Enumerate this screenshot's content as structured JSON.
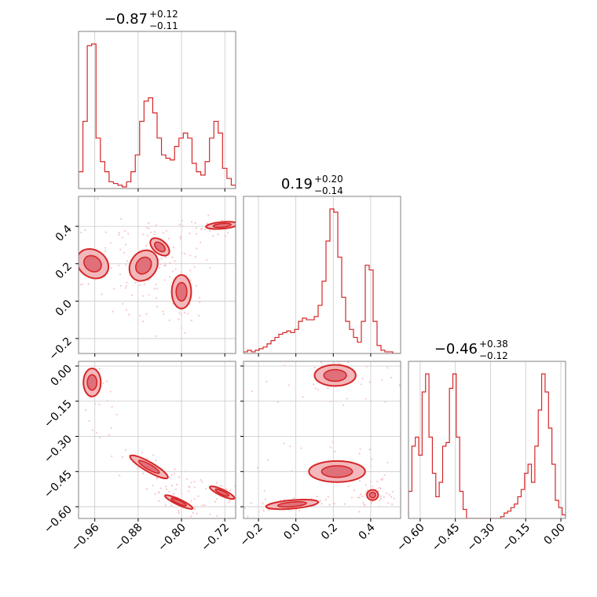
{
  "colors": {
    "accent": "#d62728",
    "fill_light": "#f2b8bb",
    "fill_dark": "#e0707a",
    "points": "#f6c8cb",
    "frame": "#808080",
    "grid": "#c8c8c8"
  },
  "chart_data": {
    "type": "corner",
    "parameters": [
      {
        "median": "−0.87",
        "plus": "+0.12",
        "minus": "−0.11",
        "range": [
          -0.99,
          -0.7
        ],
        "ticks": [
          -0.96,
          -0.88,
          -0.8,
          -0.72
        ],
        "tick_labels": [
          "−0.96",
          "−0.88",
          "−0.80",
          "−0.72"
        ]
      },
      {
        "median": "0.19",
        "plus": "+0.20",
        "minus": "−0.14",
        "range": [
          -0.28,
          0.56
        ],
        "ticks": [
          -0.2,
          0.0,
          0.2,
          0.4
        ],
        "tick_labels": [
          "−0.2",
          "0.0",
          "0.2",
          "0.4"
        ]
      },
      {
        "median": "−0.46",
        "plus": "+0.38",
        "minus": "−0.12",
        "range": [
          -0.65,
          0.02
        ],
        "ticks": [
          -0.6,
          -0.45,
          -0.3,
          -0.15,
          0.0
        ],
        "tick_labels": [
          "−0.60",
          "−0.45",
          "−0.30",
          "−0.15",
          "0.00"
        ]
      }
    ],
    "histograms": [
      {
        "values": [
          0.1,
          0.4,
          0.85,
          0.86,
          0.3,
          0.16,
          0.1,
          0.04,
          0.03,
          0.02,
          0.01,
          0.04,
          0.1,
          0.2,
          0.4,
          0.52,
          0.54,
          0.45,
          0.3,
          0.2,
          0.18,
          0.17,
          0.25,
          0.3,
          0.33,
          0.3,
          0.15,
          0.1,
          0.08,
          0.16,
          0.3,
          0.4,
          0.33,
          0.12,
          0.06,
          0.02
        ]
      },
      {
        "values": [
          0.01,
          0.02,
          0.01,
          0.02,
          0.03,
          0.04,
          0.06,
          0.08,
          0.1,
          0.12,
          0.13,
          0.14,
          0.13,
          0.15,
          0.2,
          0.22,
          0.21,
          0.21,
          0.23,
          0.3,
          0.45,
          0.7,
          0.9,
          0.88,
          0.6,
          0.35,
          0.2,
          0.15,
          0.1,
          0.07,
          0.2,
          0.55,
          0.52,
          0.2,
          0.05,
          0.02,
          0.01,
          0.01,
          0.0,
          0.0
        ]
      },
      {
        "values": [
          0.15,
          0.4,
          0.45,
          0.35,
          0.7,
          0.8,
          0.45,
          0.25,
          0.12,
          0.2,
          0.4,
          0.42,
          0.72,
          0.8,
          0.45,
          0.15,
          0.05,
          0.0,
          0.0,
          0.0,
          0.0,
          0.0,
          0.0,
          0.0,
          0.0,
          0.0,
          0.0,
          0.01,
          0.03,
          0.04,
          0.06,
          0.08,
          0.12,
          0.16,
          0.25,
          0.3,
          0.2,
          0.4,
          0.6,
          0.8,
          0.7,
          0.5,
          0.3,
          0.1,
          0.06,
          0.02
        ]
      }
    ],
    "clusters_2d": [
      {
        "pair": [
          0,
          1
        ],
        "blobs": [
          {
            "x": -0.964,
            "y": 0.2,
            "rx": 0.025,
            "ry": 0.09,
            "rot": -55
          },
          {
            "x": -0.87,
            "y": 0.19,
            "rx": 0.03,
            "ry": 0.07,
            "rot": -55
          },
          {
            "x": -0.84,
            "y": 0.29,
            "rx": 0.012,
            "ry": 0.06,
            "rot": -50
          },
          {
            "x": -0.8,
            "y": 0.05,
            "rx": 0.018,
            "ry": 0.09,
            "rot": 0
          },
          {
            "x": -0.725,
            "y": 0.405,
            "rx": 0.03,
            "ry": 0.018,
            "rot": -5
          }
        ]
      },
      {
        "pair": [
          0,
          2
        ],
        "blobs": [
          {
            "x": -0.965,
            "y": -0.07,
            "rx": 0.016,
            "ry": 0.06,
            "rot": 0
          },
          {
            "x": -0.86,
            "y": -0.43,
            "rx": 0.04,
            "ry": 0.02,
            "rot": 30
          },
          {
            "x": -0.805,
            "y": -0.58,
            "rx": 0.028,
            "ry": 0.012,
            "rot": 25
          },
          {
            "x": -0.725,
            "y": -0.54,
            "rx": 0.025,
            "ry": 0.013,
            "rot": 25
          }
        ]
      },
      {
        "pair": [
          1,
          2
        ],
        "blobs": [
          {
            "x": 0.21,
            "y": -0.04,
            "rx": 0.11,
            "ry": 0.045,
            "rot": 0
          },
          {
            "x": 0.22,
            "y": -0.45,
            "rx": 0.15,
            "ry": 0.045,
            "rot": 0
          },
          {
            "x": -0.02,
            "y": -0.59,
            "rx": 0.14,
            "ry": 0.018,
            "rot": -5
          },
          {
            "x": 0.41,
            "y": -0.55,
            "rx": 0.03,
            "ry": 0.022,
            "rot": 0
          }
        ]
      }
    ]
  }
}
